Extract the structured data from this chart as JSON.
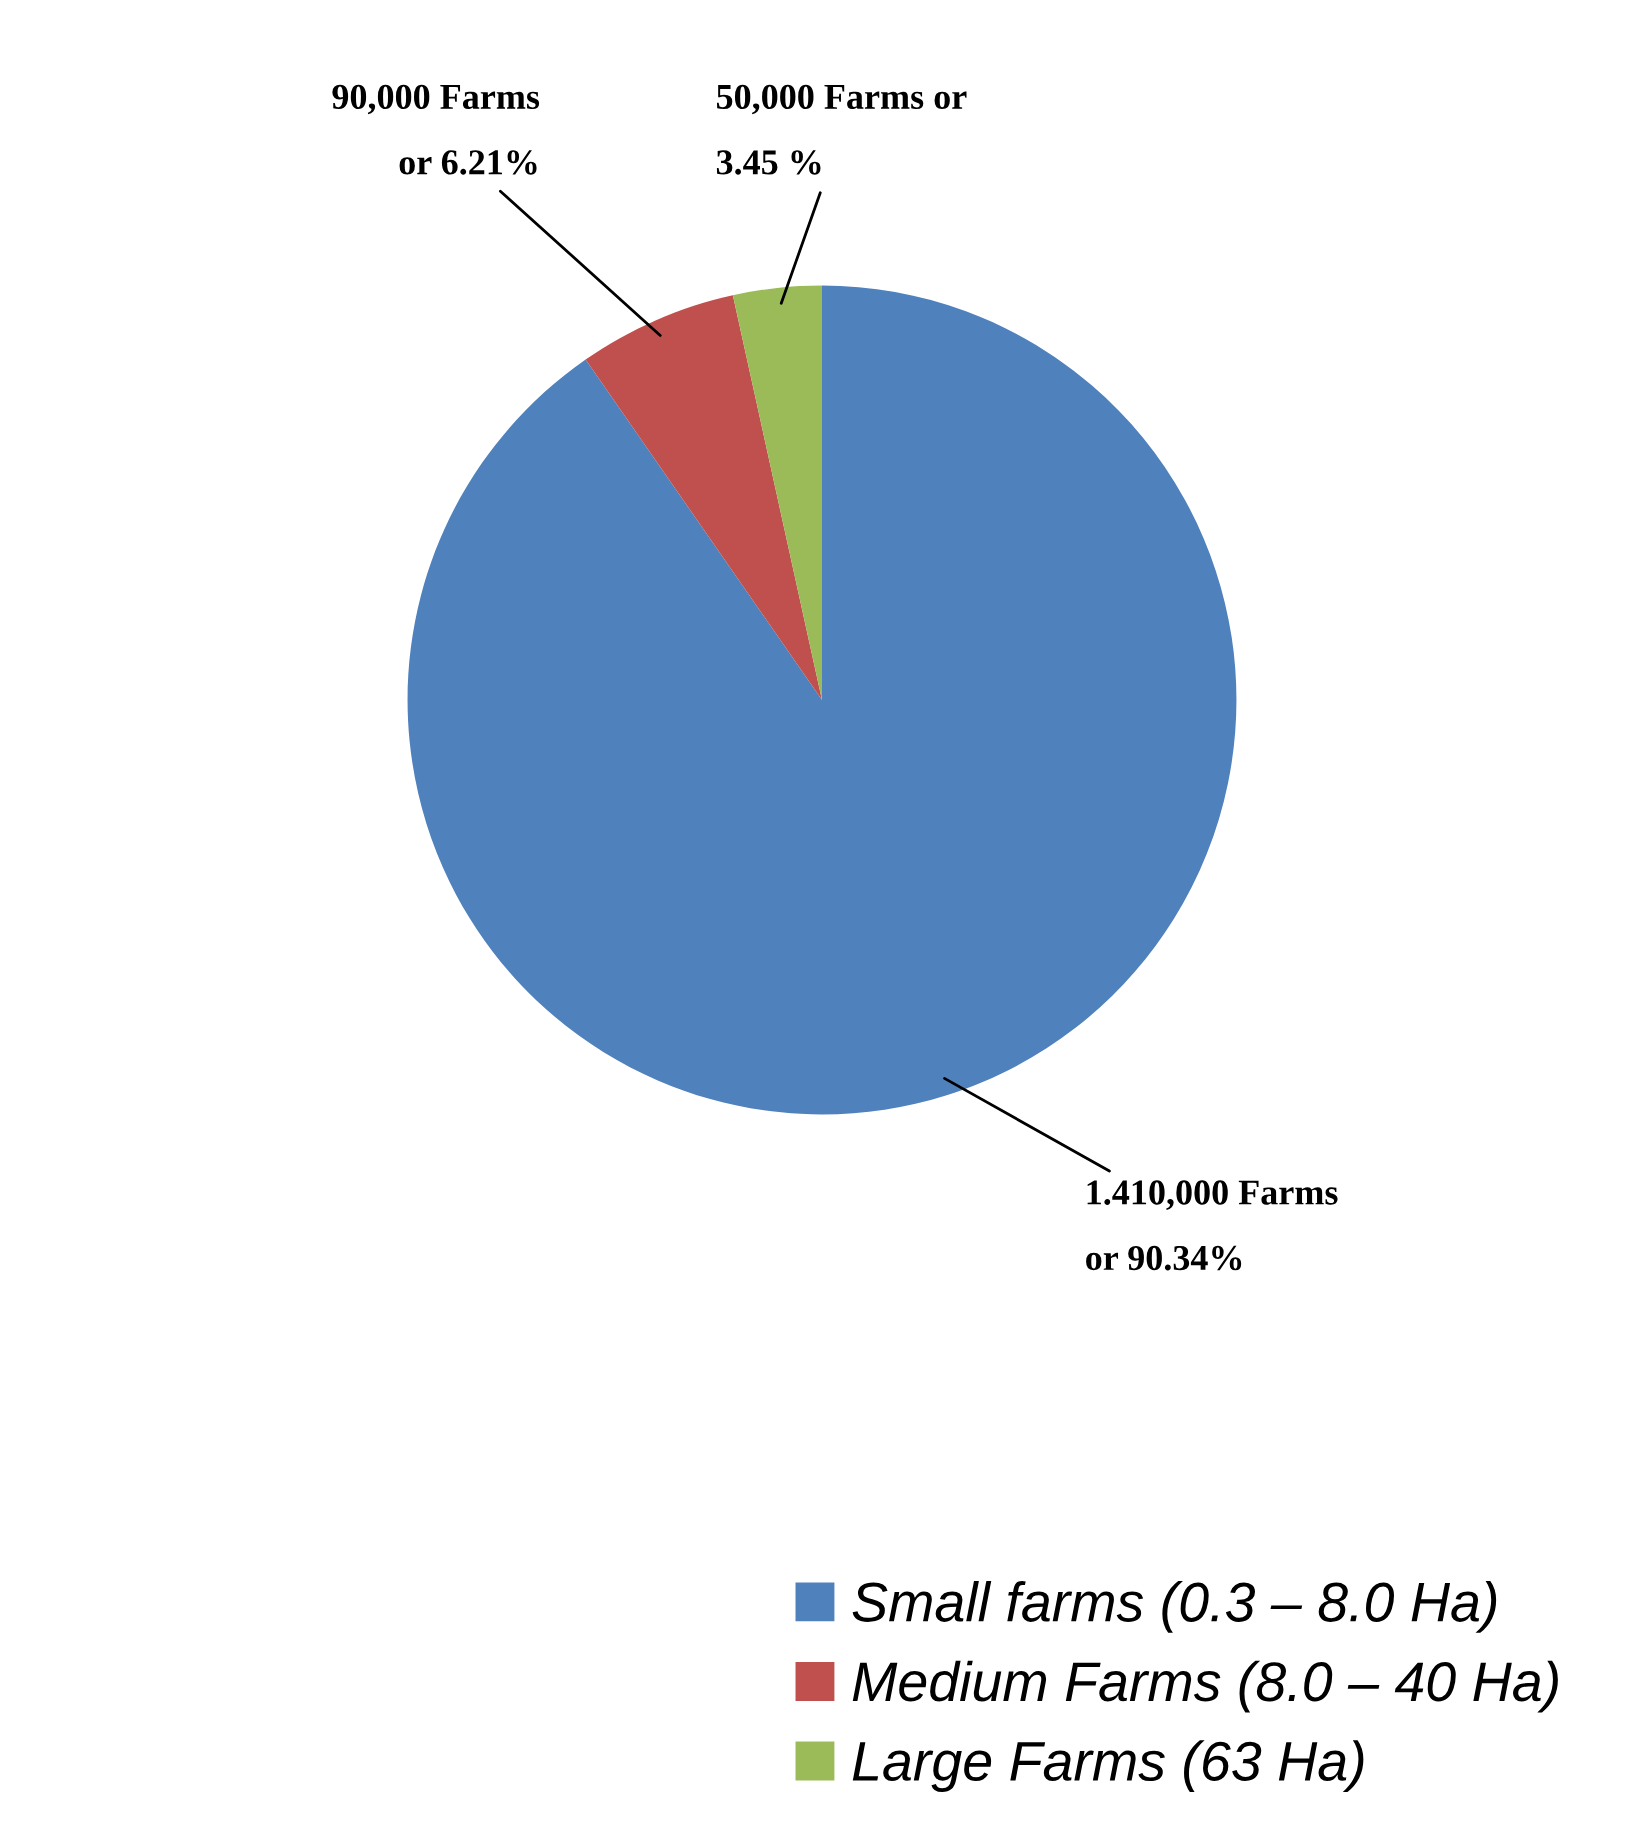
{
  "chart_data": {
    "type": "pie",
    "categories": [
      "Small farms (0.3 – 8.0 Ha)",
      "Medium Farms (8.0 – 40 Ha)",
      "Large Farms (63 Ha)"
    ],
    "values": [
      90.34,
      6.21,
      3.45
    ],
    "colors": [
      "#4f81bd",
      "#c0504d",
      "#9bbb59"
    ],
    "value_labels": [
      "1.410,000 Farms\n\nor 90.34%",
      "90,000 Farms\n\nor 6.21%",
      "50,000 Farms or\n\n3.45 %"
    ],
    "legend": "bottom right"
  }
}
